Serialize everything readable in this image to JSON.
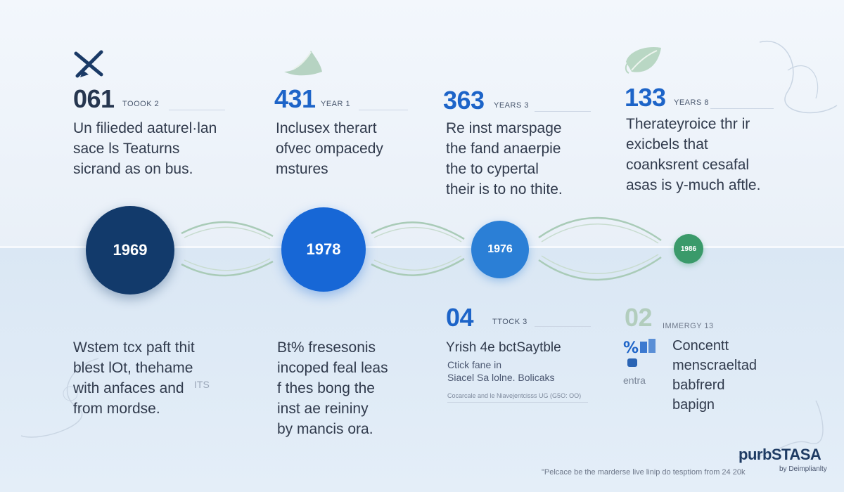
{
  "milestones_top": [
    {
      "number": "061",
      "label": "TOOOK 2",
      "text": "Un filieded aaturel·lan\nsace ls Teaturns\nsicrand as on bus.",
      "color": "#1f3e6e"
    },
    {
      "number": "431",
      "label": "YEAR 1",
      "text": "Inclusex therart\nofvec ompacedy\nmstures",
      "color": "#1d64c8"
    },
    {
      "number": "363",
      "label": "YEARS 3",
      "text": "Re inst marspage\nthe fand anaerpie\nthe to cypertal\ntheir is to no thite.",
      "color": "#1d64c8"
    },
    {
      "number": "133",
      "label": "YEARS 8",
      "text": "Therateyroice thr ir\nexicbels that\ncoanksrent cesafal\nasas is y-much aftle.",
      "color": "#1d64c8"
    }
  ],
  "timeline": [
    {
      "year": "1969",
      "color": "#123a6b"
    },
    {
      "year": "1978",
      "color": "#1767d6"
    },
    {
      "year": "1976",
      "color": "#2b7fd6"
    },
    {
      "year": "1986",
      "color": "#3a9a6a"
    }
  ],
  "milestones_bottom": [
    {
      "text": "Wstem tcx paft thit\nblest lOt, thehame\nwith anfaces and\nfrom mordse.",
      "side": "ITS"
    },
    {
      "text": "Bt% fresesonis\nincoped feal leas\nf thes bong the\ninst ae reininy\nby mancis ora."
    },
    {
      "number": "04",
      "label": "TTOCK 3",
      "text": "Yrish 4e bctSaytble",
      "sub": "Ctick fane in\nSiacel Sa lolne. Bolicaks",
      "tiny": "Cocarcale and le Niavejentcisss UG (G5O: OO)"
    },
    {
      "number": "02",
      "label": "IMMERGY 13",
      "text": "Concentt\nmenscraeltad\nbabfrerd\nbapign",
      "side": "entra"
    }
  ],
  "footer": {
    "note": "\"Pelcace be the marderse live linip do tesptiom from 24 20k",
    "logo": "purbSTASA",
    "logo_sub": "by Deimplianlty"
  }
}
